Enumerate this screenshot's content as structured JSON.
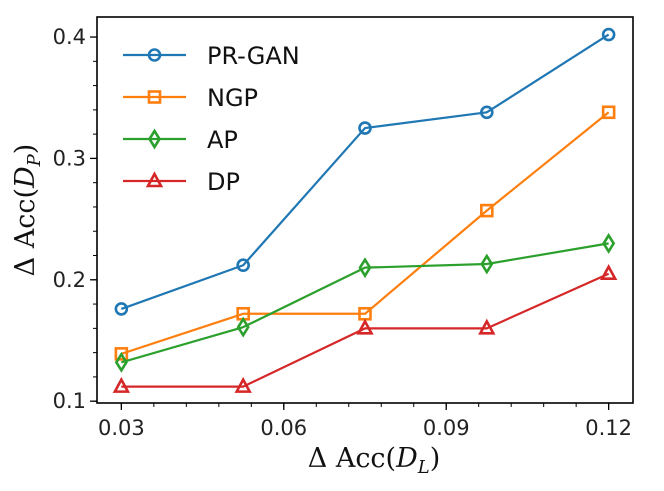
{
  "chart_data": {
    "type": "line",
    "xlabel": "Δ Acc(D_L)",
    "ylabel": "Δ Acc(D_P)",
    "x": [
      0.03,
      0.0525,
      0.075,
      0.0975,
      0.12
    ],
    "xlim": [
      0.0255,
      0.1245
    ],
    "ylim": [
      0.0985,
      0.4165
    ],
    "xticks": [
      0.03,
      0.06,
      0.09,
      0.12
    ],
    "xtick_labels": [
      "0.03",
      "0.06",
      "0.09",
      "0.12"
    ],
    "yticks": [
      0.1,
      0.2,
      0.3,
      0.4
    ],
    "ytick_labels": [
      "0.1",
      "0.2",
      "0.3",
      "0.4"
    ],
    "grid": false,
    "legend_position": "top-left",
    "series": [
      {
        "name": "PR-GAN",
        "color": "#1f77b4",
        "marker": "circle",
        "values": [
          0.176,
          0.212,
          0.325,
          0.338,
          0.402
        ]
      },
      {
        "name": "NGP",
        "color": "#ff7f0e",
        "marker": "square",
        "values": [
          0.139,
          0.172,
          0.172,
          0.257,
          0.338
        ]
      },
      {
        "name": "AP",
        "color": "#2ca02c",
        "marker": "diamond",
        "values": [
          0.132,
          0.161,
          0.21,
          0.213,
          0.23
        ]
      },
      {
        "name": "DP",
        "color": "#d62728",
        "marker": "triangle",
        "values": [
          0.112,
          0.112,
          0.16,
          0.16,
          0.205
        ]
      }
    ]
  }
}
